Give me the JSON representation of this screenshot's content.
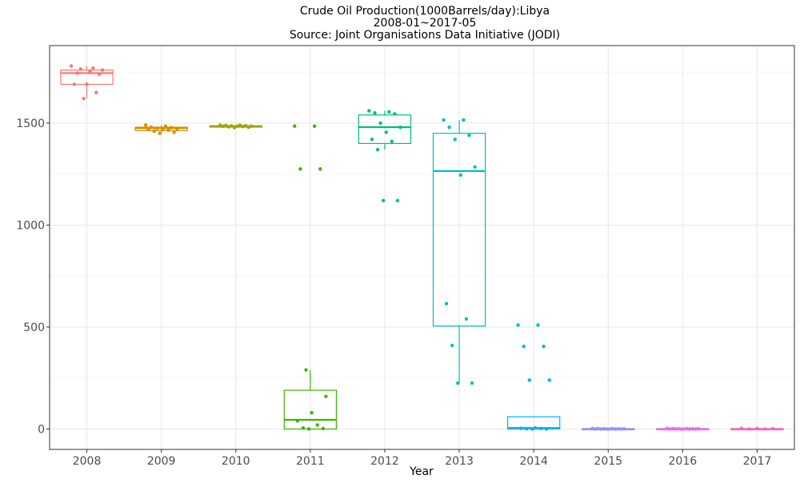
{
  "chart_data": {
    "type": "box",
    "title": "Crude Oil Production(1000Barrels/day):Libya",
    "subtitle1": "2008-01~2017-05",
    "subtitle2": "Source: Joint Organisations Data Initiative (JODI)",
    "xlabel": "Year",
    "ylabel": "",
    "ylim": [
      -100,
      1880
    ],
    "yticks": [
      0,
      500,
      1000,
      1500
    ],
    "grid": true,
    "legend": "none",
    "categories": [
      "2008",
      "2009",
      "2010",
      "2011",
      "2012",
      "2013",
      "2014",
      "2015",
      "2016",
      "2017"
    ],
    "series": [
      {
        "category": "2008",
        "color": "#F8766D",
        "box": {
          "min": 1620,
          "q1": 1690,
          "median": 1745,
          "q3": 1760,
          "max": 1780
        },
        "points": [
          1780,
          1770,
          1765,
          1760,
          1755,
          1745,
          1740,
          1690,
          1690,
          1650,
          1620
        ]
      },
      {
        "category": "2009",
        "color": "#D89000",
        "box": {
          "min": 1450,
          "q1": 1463,
          "median": 1475,
          "q3": 1480,
          "max": 1490
        },
        "points": [
          1490,
          1485,
          1480,
          1478,
          1475,
          1472,
          1470,
          1468,
          1465,
          1460,
          1455,
          1450
        ]
      },
      {
        "category": "2010",
        "color": "#A3A500",
        "box": {
          "min": 1478,
          "q1": 1480,
          "median": 1485,
          "q3": 1487,
          "max": 1490
        },
        "points": [
          1490,
          1489,
          1488,
          1487,
          1486,
          1485,
          1485,
          1484,
          1483,
          1482,
          1480,
          1478
        ]
      },
      {
        "category": "2011",
        "color": "#39B600",
        "box": {
          "min": 0,
          "q1": 0,
          "median": 45,
          "q3": 190,
          "max": 290
        },
        "points": [
          1485,
          1485,
          1275,
          1275,
          290,
          160,
          80,
          40,
          20,
          5,
          2,
          0
        ]
      },
      {
        "category": "2012",
        "color": "#00BF7D",
        "box": {
          "min": 1370,
          "q1": 1400,
          "median": 1480,
          "q3": 1540,
          "max": 1560
        },
        "points": [
          1560,
          1555,
          1550,
          1545,
          1500,
          1480,
          1455,
          1420,
          1410,
          1370,
          1120,
          1120
        ]
      },
      {
        "category": "2013",
        "color": "#00BFC4",
        "box": {
          "min": 225,
          "q1": 505,
          "median": 1265,
          "q3": 1450,
          "max": 1515
        },
        "points": [
          1515,
          1515,
          1480,
          1440,
          1420,
          1285,
          1245,
          615,
          540,
          410,
          225,
          225
        ]
      },
      {
        "category": "2014",
        "color": "#00B0F6",
        "box": {
          "min": 0,
          "q1": 0,
          "median": 5,
          "q3": 60,
          "max": 60
        },
        "points": [
          510,
          510,
          405,
          405,
          240,
          240,
          5,
          3,
          2,
          1,
          0,
          0
        ]
      },
      {
        "category": "2015",
        "color": "#9590FF",
        "box": {
          "min": 0,
          "q1": 0,
          "median": 0,
          "q3": 2,
          "max": 3
        },
        "points": [
          3,
          2,
          2,
          1,
          1,
          1,
          0,
          0,
          0,
          0,
          0,
          0
        ]
      },
      {
        "category": "2016",
        "color": "#E76BF3",
        "box": {
          "min": 0,
          "q1": 0,
          "median": 0,
          "q3": 2,
          "max": 3
        },
        "points": [
          3,
          2,
          2,
          1,
          1,
          1,
          0,
          0,
          0,
          0,
          0,
          0
        ]
      },
      {
        "category": "2017",
        "color": "#FF62BC",
        "box": {
          "min": 0,
          "q1": 0,
          "median": 0,
          "q3": 2,
          "max": 3
        },
        "points": [
          3,
          2,
          1,
          0,
          0
        ]
      }
    ]
  }
}
